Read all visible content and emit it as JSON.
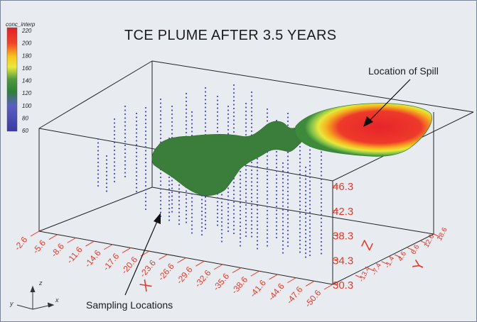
{
  "title": "TCE PLUME AFTER 3.5 YEARS",
  "legend": {
    "label": "conc_interp",
    "values": [
      "220",
      "200",
      "180",
      "160",
      "140",
      "120",
      "100",
      "80",
      "60"
    ],
    "colors": [
      "#e0202a",
      "#f04428",
      "#f7c51e",
      "#e9ea3a",
      "#4e9a3f",
      "#2f7f3a",
      "#5a5fc0",
      "#4646b2",
      "#3a3aa5"
    ]
  },
  "annotations": {
    "spill": "Location of Spill",
    "sampling": "Sampling Locations"
  },
  "axes": {
    "x_letter": "X",
    "y_letter": "Y",
    "z_letter": "Z",
    "x_ticks": [
      "-2.6",
      "-5.6",
      "-8.6",
      "-11.6",
      "-14.6",
      "-17.6",
      "-20.6",
      "-23.6",
      "-26.6",
      "-29.6",
      "-32.6",
      "-35.6",
      "-38.6",
      "-41.6",
      "-44.6",
      "-47.6",
      "-50.6"
    ],
    "z_ticks": [
      "46.3",
      "42.3",
      "38.3",
      "34.3",
      "30.3"
    ],
    "y_ticks": [
      "18.6",
      "12.6",
      "6.6",
      "4.6",
      "-1.4",
      "-7.4",
      "-13.4"
    ]
  },
  "triad": {
    "z": "z",
    "y": "y",
    "x": "x"
  }
}
